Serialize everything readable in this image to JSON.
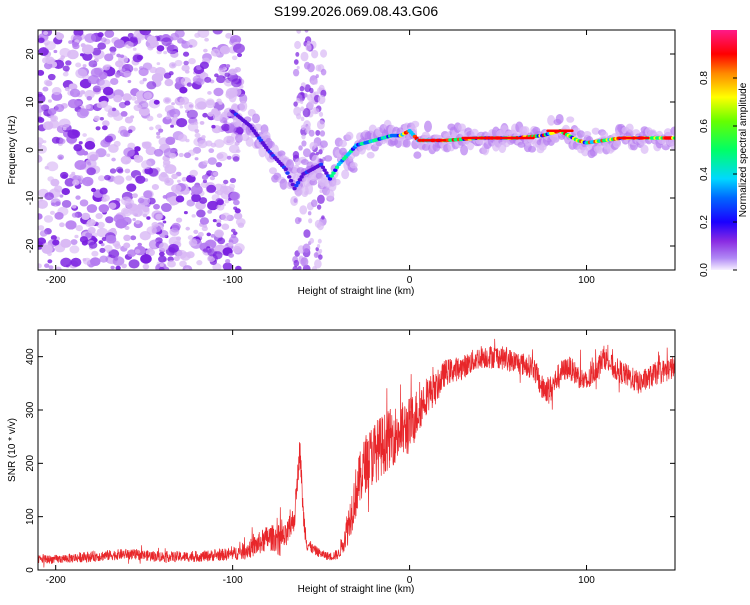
{
  "title": "S199.2026.069.08.43.G06",
  "colors": {
    "background": "#ffffff",
    "axis": "#000000",
    "snr_line": "#e8262a",
    "scatter_light": "#d9b8f5",
    "scatter_mid": "#b57cf0",
    "scatter_dark": "#7a1fe0"
  },
  "chart_data": [
    {
      "type": "heatmap",
      "name": "spectrogram",
      "xlabel": "Height of straight line (km)",
      "ylabel": "Frequency (Hz)",
      "xlim": [
        -210,
        150
      ],
      "ylim": [
        -25,
        25
      ],
      "xticks": [
        -200,
        -100,
        0,
        100
      ],
      "xtick_labels": [
        "-200",
        "-100",
        "0",
        "100"
      ],
      "yticks": [
        -20,
        -10,
        0,
        10,
        20
      ],
      "ytick_labels": [
        "-20",
        "-10",
        "0",
        "10",
        "20"
      ],
      "ridge": {
        "x": [
          -100,
          -90,
          -80,
          -70,
          -65,
          -60,
          -50,
          -45,
          -40,
          -35,
          -30,
          -20,
          -10,
          -5,
          0,
          5,
          10,
          20,
          40,
          60,
          75,
          80,
          85,
          90,
          95,
          100,
          120,
          150
        ],
        "freq": [
          8,
          5,
          0,
          -4,
          -8,
          -5,
          -3,
          -6,
          -3,
          -1,
          1,
          2,
          3,
          3,
          4,
          2,
          2,
          2,
          2.5,
          2.5,
          3,
          3.5,
          4,
          3,
          2,
          1.5,
          2.5,
          2.5
        ]
      },
      "colorbar": {
        "label": "Normalized spectral amplitude",
        "range": [
          0.0,
          1.0
        ],
        "ticks": [
          0.0,
          0.2,
          0.4,
          0.6,
          0.8
        ],
        "tick_labels": [
          "0.0",
          "0.2",
          "0.4",
          "0.6",
          "0.8"
        ]
      }
    },
    {
      "type": "line",
      "name": "snr",
      "xlabel": "Height of straight line (km)",
      "ylabel": "SNR (10 * v/v)",
      "xlim": [
        -210,
        150
      ],
      "ylim": [
        0,
        450
      ],
      "xticks": [
        -200,
        -100,
        0,
        100
      ],
      "xtick_labels": [
        "-200",
        "-100",
        "0",
        "100"
      ],
      "yticks": [
        0,
        100,
        200,
        300,
        400
      ],
      "ytick_labels": [
        "0",
        "100",
        "200",
        "300",
        "400"
      ],
      "series": [
        {
          "name": "SNR",
          "x": [
            -210,
            -200,
            -180,
            -160,
            -140,
            -120,
            -100,
            -90,
            -80,
            -70,
            -65,
            -62,
            -60,
            -58,
            -55,
            -50,
            -45,
            -40,
            -35,
            -30,
            -25,
            -20,
            -10,
            0,
            10,
            15,
            20,
            30,
            40,
            50,
            60,
            70,
            75,
            80,
            85,
            90,
            100,
            110,
            115,
            120,
            130,
            140,
            150
          ],
          "y": [
            20,
            20,
            25,
            30,
            25,
            25,
            30,
            40,
            60,
            60,
            100,
            230,
            100,
            50,
            40,
            30,
            25,
            30,
            80,
            150,
            200,
            220,
            250,
            270,
            330,
            340,
            370,
            380,
            400,
            400,
            390,
            380,
            340,
            340,
            370,
            380,
            350,
            400,
            380,
            370,
            350,
            370,
            380
          ],
          "noise": [
            8,
            8,
            10,
            10,
            10,
            10,
            12,
            18,
            25,
            25,
            25,
            25,
            25,
            15,
            10,
            8,
            8,
            10,
            35,
            50,
            55,
            60,
            55,
            55,
            35,
            30,
            25,
            22,
            22,
            22,
            22,
            22,
            25,
            25,
            22,
            22,
            22,
            22,
            22,
            22,
            22,
            22,
            22
          ]
        }
      ]
    }
  ]
}
